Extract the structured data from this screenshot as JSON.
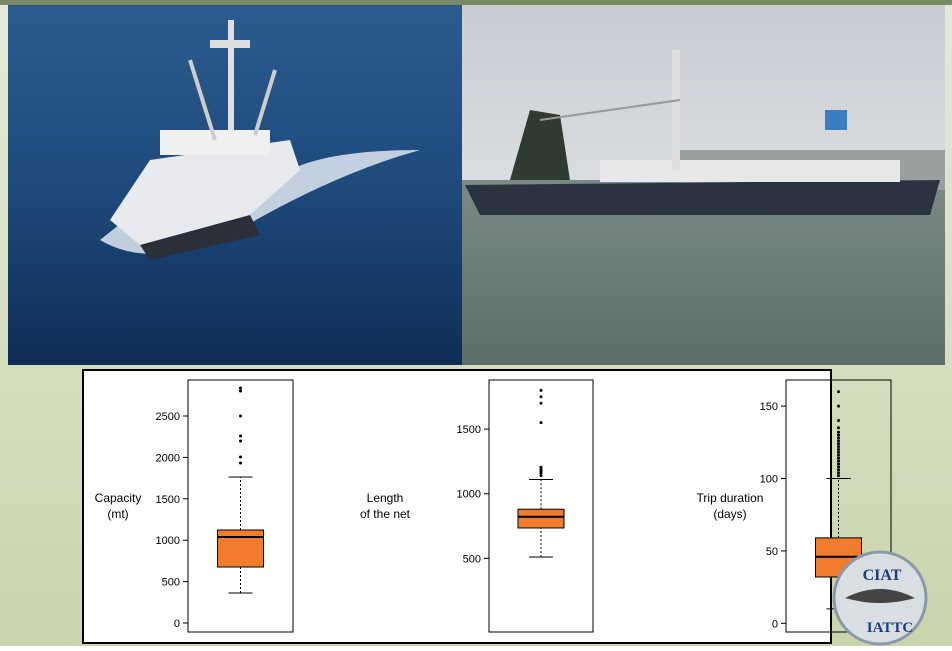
{
  "chart_data": [
    {
      "type": "box",
      "ylabel": [
        "Capacity",
        "(mt)"
      ],
      "ylim": [
        -109,
        2935
      ],
      "yticks": [
        0,
        500,
        1000,
        1500,
        2000,
        2500
      ],
      "color": "#f07c2c",
      "min": 362,
      "q1": 676,
      "median": 1039,
      "q3": 1123,
      "max": 1763,
      "outliers": [
        1932,
        2005,
        2198,
        2258,
        2500,
        2802,
        2838
      ]
    },
    {
      "type": "box",
      "ylabel": [
        "Length",
        "of the net"
      ],
      "ylim": [
        -70,
        1880
      ],
      "yticks": [
        500,
        1000,
        1500
      ],
      "color": "#f07c2c",
      "min": 510,
      "q1": 735,
      "median": 822,
      "q3": 880,
      "max": 1110,
      "outliers": [
        1140,
        1160,
        1175,
        1190,
        1205,
        1550,
        1700,
        1750,
        1800
      ]
    },
    {
      "type": "box",
      "ylabel": [
        "Trip duration",
        "(days)"
      ],
      "ylim": [
        -6,
        168
      ],
      "yticks": [
        0,
        50,
        100,
        150
      ],
      "color": "#f07c2c",
      "min": 10,
      "q1": 32,
      "median": 46,
      "q3": 59,
      "max": 100,
      "outliers": [
        102,
        104,
        106,
        108,
        110,
        112,
        114,
        116,
        118,
        120,
        122,
        124,
        126,
        128,
        130,
        132,
        135,
        140,
        150,
        160
      ]
    }
  ],
  "logo": {
    "top": "CIAT",
    "bottom": "IATTC"
  }
}
